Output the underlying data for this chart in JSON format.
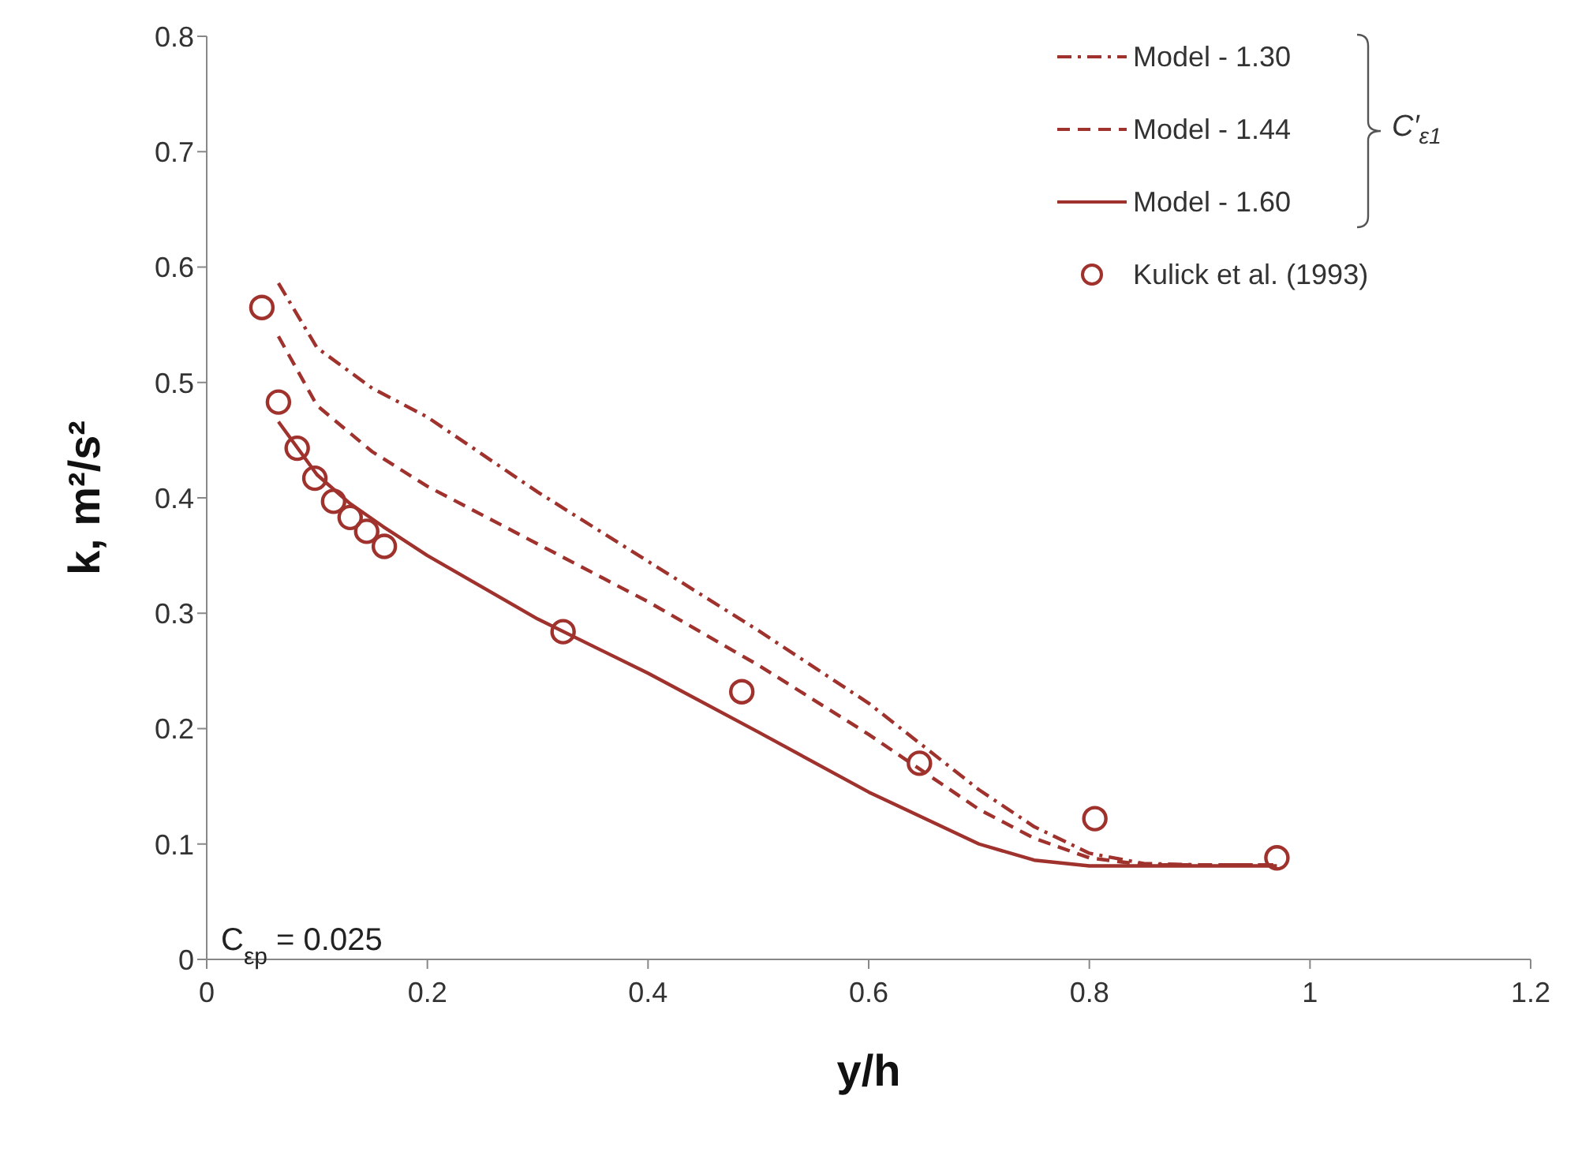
{
  "chart_data": {
    "type": "line",
    "xlabel": "y/h",
    "ylabel": "k, m²/s²",
    "xlim": [
      0,
      1.2
    ],
    "xticks": [
      0,
      0.2,
      0.4,
      0.6,
      0.8,
      1,
      1.2
    ],
    "ylim": [
      0,
      0.8
    ],
    "yticks": [
      0,
      0.1,
      0.2,
      0.3,
      0.4,
      0.5,
      0.6,
      0.7,
      0.8
    ],
    "grid": false,
    "legend": "top right",
    "legend_title": "C′$_{ε1}$",
    "annotations": [
      "C$_{εp}$ = 0.025"
    ],
    "series": [
      {
        "name": "Model - 1.30",
        "line_style": "dashdot",
        "marker": "none",
        "color": "#a0322d",
        "x": [
          0.065,
          0.1,
          0.15,
          0.2,
          0.3,
          0.4,
          0.5,
          0.6,
          0.7,
          0.75,
          0.8,
          0.85,
          0.9,
          0.97
        ],
        "values": [
          0.586,
          0.53,
          0.495,
          0.47,
          0.405,
          0.345,
          0.285,
          0.222,
          0.147,
          0.115,
          0.092,
          0.083,
          0.082,
          0.082
        ]
      },
      {
        "name": "Model - 1.44",
        "line_style": "dashed",
        "marker": "none",
        "color": "#a0322d",
        "x": [
          0.065,
          0.1,
          0.15,
          0.2,
          0.3,
          0.4,
          0.5,
          0.6,
          0.7,
          0.75,
          0.8,
          0.85,
          0.9,
          0.97
        ],
        "values": [
          0.54,
          0.48,
          0.44,
          0.41,
          0.36,
          0.31,
          0.255,
          0.195,
          0.13,
          0.105,
          0.088,
          0.082,
          0.082,
          0.082
        ]
      },
      {
        "name": "Model - 1.60",
        "line_style": "solid",
        "marker": "none",
        "color": "#a0322d",
        "x": [
          0.065,
          0.1,
          0.13,
          0.16,
          0.2,
          0.3,
          0.4,
          0.5,
          0.6,
          0.7,
          0.75,
          0.8,
          0.9,
          0.97
        ],
        "values": [
          0.466,
          0.42,
          0.395,
          0.375,
          0.35,
          0.295,
          0.248,
          0.197,
          0.145,
          0.1,
          0.086,
          0.081,
          0.081,
          0.081
        ]
      },
      {
        "name": "Kulick et al. (1993)",
        "type": "scatter",
        "marker": "circle",
        "color": "#a0322d",
        "x": [
          0.05,
          0.065,
          0.082,
          0.098,
          0.115,
          0.13,
          0.145,
          0.161,
          0.323,
          0.485,
          0.646,
          0.805,
          0.97
        ],
        "values": [
          0.565,
          0.483,
          0.443,
          0.417,
          0.397,
          0.383,
          0.371,
          0.358,
          0.284,
          0.232,
          0.17,
          0.122,
          0.088
        ]
      }
    ]
  }
}
